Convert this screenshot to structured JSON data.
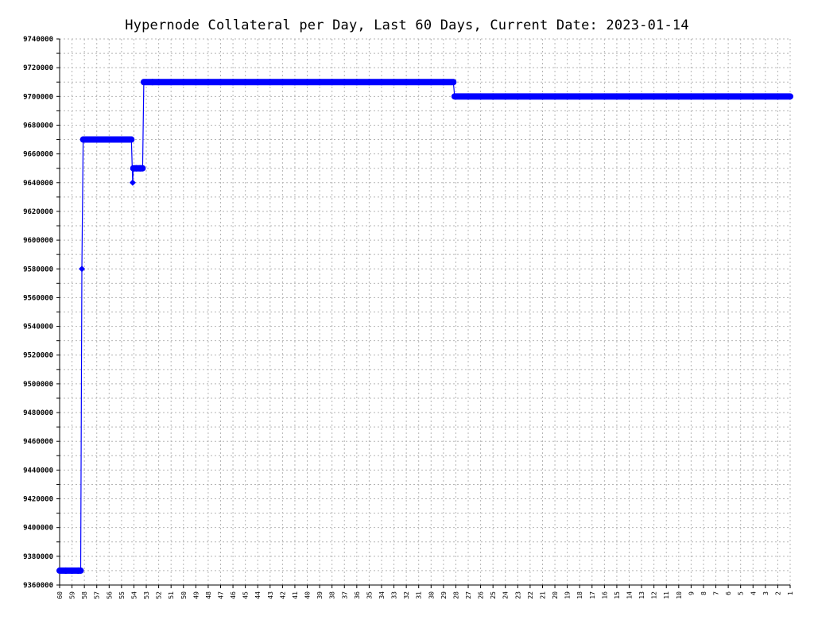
{
  "chart_data": {
    "type": "line",
    "title": "Hypernode Collateral per Day, Last 60 Days, Current Date: 2023-01-14",
    "xlabel": "",
    "ylabel": "",
    "x_categories": [
      "60",
      "59",
      "58",
      "57",
      "56",
      "55",
      "54",
      "53",
      "52",
      "51",
      "50",
      "49",
      "48",
      "47",
      "46",
      "45",
      "44",
      "43",
      "42",
      "41",
      "40",
      "39",
      "38",
      "37",
      "36",
      "35",
      "34",
      "33",
      "32",
      "31",
      "30",
      "29",
      "28",
      "27",
      "26",
      "25",
      "24",
      "23",
      "22",
      "21",
      "20",
      "19",
      "18",
      "17",
      "16",
      "15",
      "14",
      "13",
      "12",
      "11",
      "10",
      "9",
      "8",
      "7",
      "6",
      "5",
      "4",
      "3",
      "2",
      "1"
    ],
    "ylim": [
      9360000,
      9740000
    ],
    "y_ticks": [
      "9360000",
      "9380000",
      "9400000",
      "9420000",
      "9440000",
      "9460000",
      "9480000",
      "9500000",
      "9520000",
      "9540000",
      "9560000",
      "9580000",
      "9600000",
      "9620000",
      "9640000",
      "9660000",
      "9680000",
      "9700000",
      "9720000",
      "9740000"
    ],
    "grid": true,
    "color": "#0000ff",
    "series": [
      {
        "points": [
          [
            60,
            9370000
          ],
          [
            59.5,
            9370000
          ],
          [
            59,
            9370000
          ],
          [
            58.5,
            9370000
          ],
          [
            58.3,
            9370000
          ],
          [
            58.2,
            9580000
          ],
          [
            58.1,
            9670000
          ],
          [
            57.5,
            9670000
          ],
          [
            57,
            9670000
          ],
          [
            56.5,
            9670000
          ],
          [
            56,
            9670000
          ],
          [
            55.5,
            9670000
          ],
          [
            55,
            9670000
          ],
          [
            54.5,
            9670000
          ],
          [
            54.2,
            9670000
          ],
          [
            54.1,
            9640000
          ],
          [
            54.05,
            9650000
          ],
          [
            53.8,
            9650000
          ],
          [
            53.5,
            9650000
          ],
          [
            53.3,
            9650000
          ],
          [
            53.2,
            9710000
          ],
          [
            52.5,
            9710000
          ],
          [
            52,
            9710000
          ],
          [
            51,
            9710000
          ],
          [
            50,
            9710000
          ],
          [
            49,
            9710000
          ],
          [
            48,
            9710000
          ],
          [
            47,
            9710000
          ],
          [
            46,
            9710000
          ],
          [
            45,
            9710000
          ],
          [
            44,
            9710000
          ],
          [
            43,
            9710000
          ],
          [
            42,
            9710000
          ],
          [
            41,
            9710000
          ],
          [
            40,
            9710000
          ],
          [
            39,
            9710000
          ],
          [
            38,
            9710000
          ],
          [
            37,
            9710000
          ],
          [
            36,
            9710000
          ],
          [
            35,
            9710000
          ],
          [
            34,
            9710000
          ],
          [
            33,
            9710000
          ],
          [
            32,
            9710000
          ],
          [
            31,
            9710000
          ],
          [
            30,
            9710000
          ],
          [
            29,
            9710000
          ],
          [
            28.2,
            9710000
          ],
          [
            28.1,
            9700000
          ],
          [
            27,
            9700000
          ],
          [
            26,
            9700000
          ],
          [
            25,
            9700000
          ],
          [
            24,
            9700000
          ],
          [
            23,
            9700000
          ],
          [
            22,
            9700000
          ],
          [
            21,
            9700000
          ],
          [
            20,
            9700000
          ],
          [
            19,
            9700000
          ],
          [
            18,
            9700000
          ],
          [
            17,
            9700000
          ],
          [
            16,
            9700000
          ],
          [
            15,
            9700000
          ],
          [
            14,
            9700000
          ],
          [
            13,
            9700000
          ],
          [
            12,
            9700000
          ],
          [
            11,
            9700000
          ],
          [
            10,
            9700000
          ],
          [
            9,
            9700000
          ],
          [
            8,
            9700000
          ],
          [
            7,
            9700000
          ],
          [
            6,
            9700000
          ],
          [
            5,
            9700000
          ],
          [
            4,
            9700000
          ],
          [
            3,
            9700000
          ],
          [
            2,
            9700000
          ],
          [
            1,
            9700000
          ]
        ]
      }
    ]
  }
}
